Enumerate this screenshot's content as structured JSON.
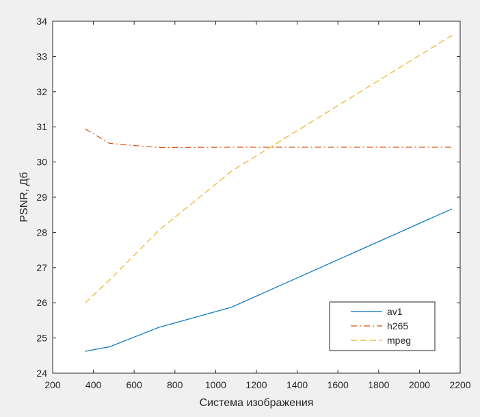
{
  "chart_data": {
    "type": "line",
    "title": "",
    "xlabel": "Система изображения",
    "ylabel": "PSNR, Дб",
    "xlim": [
      200,
      2200
    ],
    "ylim": [
      24,
      34
    ],
    "xticks": [
      200,
      400,
      600,
      800,
      1000,
      1200,
      1400,
      1600,
      1800,
      2000,
      2200
    ],
    "yticks": [
      24,
      25,
      26,
      27,
      28,
      29,
      30,
      31,
      32,
      33,
      34
    ],
    "grid": false,
    "legend_position": "bottom-right",
    "series": [
      {
        "name": "av1",
        "color": "#0072BD",
        "style": "solid",
        "x": [
          360,
          480,
          720,
          1080,
          2160
        ],
        "y": [
          24.62,
          24.75,
          25.3,
          25.88,
          28.67
        ]
      },
      {
        "name": "h265",
        "color": "#D95319",
        "style": "dashdot",
        "x": [
          360,
          480,
          720,
          1080,
          2160
        ],
        "y": [
          30.94,
          30.53,
          30.41,
          30.42,
          30.42
        ]
      },
      {
        "name": "mpeg",
        "color": "#EDB120",
        "style": "dashed",
        "x": [
          360,
          480,
          720,
          1080,
          2160
        ],
        "y": [
          26.0,
          26.65,
          28.05,
          29.75,
          33.6
        ]
      }
    ]
  }
}
